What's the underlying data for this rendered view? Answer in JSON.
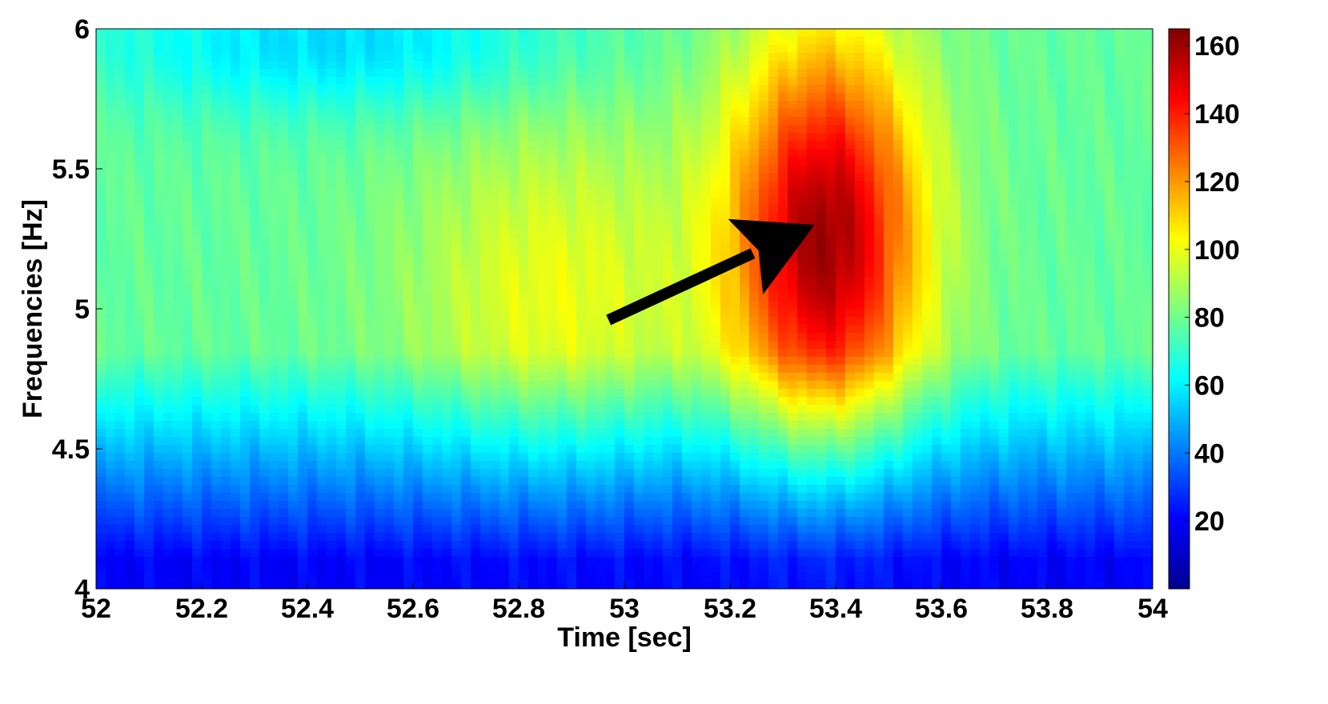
{
  "chart_data": {
    "type": "heatmap",
    "title": "",
    "xlabel": "Time [sec]",
    "ylabel": "Frequencies [Hz]",
    "xlim": [
      52,
      54
    ],
    "ylim": [
      4,
      6
    ],
    "x_ticks": [
      "52",
      "52.2",
      "52.4",
      "52.6",
      "52.8",
      "53",
      "53.2",
      "53.4",
      "53.6",
      "53.8",
      "54"
    ],
    "y_ticks": [
      "4",
      "4.5",
      "5",
      "5.5",
      "6"
    ],
    "colorbar": {
      "colormap": "jet",
      "range": [
        0,
        165
      ],
      "ticks": [
        "20",
        "40",
        "60",
        "80",
        "100",
        "120",
        "140",
        "160"
      ]
    },
    "features": [
      {
        "name": "primary peak",
        "time": 53.38,
        "freq_center": 5.25,
        "time_halfwidth": 0.19,
        "freq_halfwidth": 0.75,
        "peak_value": 160
      },
      {
        "name": "secondary ridge",
        "time": 52.87,
        "freq_center": 5.05,
        "time_halfwidth": 0.3,
        "freq_halfwidth": 0.7,
        "peak_value": 100
      },
      {
        "name": "low-frequency band",
        "freq_max": 4.45,
        "value": 20
      },
      {
        "name": "upper-left cool region",
        "time": 52.45,
        "freq_center": 5.95,
        "value": 55
      }
    ],
    "background_value": 78,
    "annotation": {
      "type": "arrow",
      "from": [
        52.97,
        4.96
      ],
      "to": [
        53.36,
        5.3
      ]
    },
    "grid": false,
    "legend": "none"
  }
}
